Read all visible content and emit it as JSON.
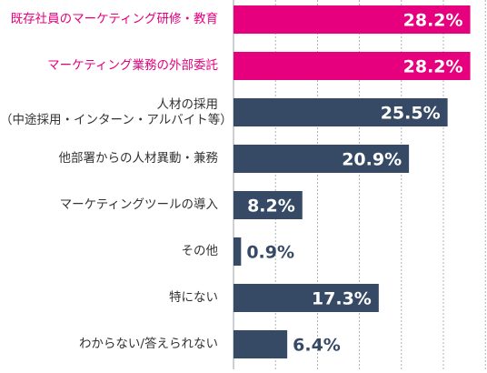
{
  "chart_data": {
    "type": "bar",
    "orientation": "horizontal",
    "title": "",
    "xlabel": "",
    "ylabel": "",
    "grid": true,
    "legend": "none",
    "xlim": [
      0,
      30
    ],
    "categories": [
      [
        "既存社員のマーケティング研修・教育"
      ],
      [
        "マーケティング業務の外部委託"
      ],
      [
        "人材の採用",
        "（中途採用・インターン・アルバイト等）"
      ],
      [
        "他部署からの人材異動・兼務"
      ],
      [
        "マーケティングツールの導入"
      ],
      [
        "その他"
      ],
      [
        "特にない"
      ],
      [
        "わからない/答えられない"
      ]
    ],
    "values": [
      28.2,
      28.2,
      25.5,
      20.9,
      8.2,
      0.9,
      17.3,
      6.4
    ],
    "value_labels": [
      "28.2%",
      "28.2%",
      "25.5%",
      "20.9%",
      "8.2%",
      "0.9%",
      "17.3%",
      "6.4%"
    ],
    "highlight": [
      true,
      true,
      false,
      false,
      false,
      false,
      false,
      false
    ],
    "colors": {
      "highlight_bar": "#E6007E",
      "bar": "#364A65",
      "highlight_label": "#E6007E",
      "label": "#333333",
      "value_inside": "#ffffff",
      "value_outside": "#364A65",
      "grid": "#9aa0a6"
    }
  }
}
